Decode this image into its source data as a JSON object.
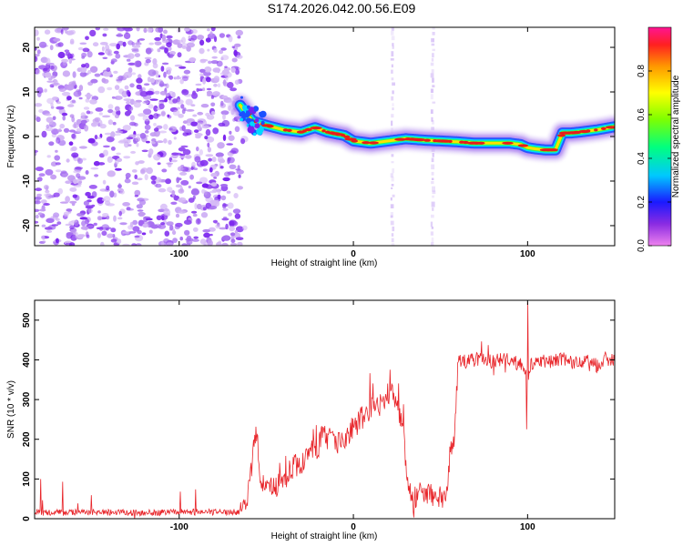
{
  "title": "S174.2026.042.00.56.E09",
  "colors": {
    "snr_line": "#e8252a",
    "ridge_core": "#e81c1c",
    "noise_hi": "#7a22ee",
    "noise_lo": "#d4b8f6",
    "axis": "#000000"
  },
  "chart_data": [
    {
      "type": "heatmap",
      "title": "S174.2026.042.00.56.E09",
      "xlabel": "Height of straight line (km)",
      "ylabel": "Frequency (Hz)",
      "xlim": [
        -183,
        150
      ],
      "ylim": [
        -24.5,
        24.5
      ],
      "xticks": [
        "-100",
        "0",
        "100"
      ],
      "yticks": [
        "20",
        "10",
        "0",
        "-10",
        "-20"
      ],
      "noise_region_x": [
        -183,
        -65
      ],
      "ridge": {
        "x": [
          -65,
          -58,
          -50,
          -40,
          -30,
          -22,
          -15,
          -5,
          0,
          10,
          20,
          30,
          40,
          50,
          60,
          70,
          80,
          90,
          96,
          100,
          105,
          110,
          116,
          120,
          125,
          130,
          140,
          150
        ],
        "freq": [
          7,
          3.5,
          2.5,
          1.5,
          1,
          2,
          1,
          0.2,
          -1,
          -1.5,
          -1,
          -0.5,
          -0.8,
          -1,
          -1.2,
          -1.5,
          -1.5,
          -1.5,
          -1.8,
          -2.5,
          -2.8,
          -3,
          -3,
          0.8,
          0.8,
          1,
          1.5,
          2.2
        ]
      },
      "interference_lines_x": [
        22,
        45
      ],
      "colorbar": {
        "label": "Normalized spectral amplitude",
        "range": [
          0.0,
          1.0
        ],
        "ticks": [
          "0.0",
          "0.2",
          "0.4",
          "0.6",
          "0.8"
        ]
      }
    },
    {
      "type": "line",
      "xlabel": "Height of straight line (km)",
      "ylabel": "SNR (10 * v/v)",
      "xlim": [
        -183,
        150
      ],
      "ylim": [
        0,
        550
      ],
      "xticks": [
        "-100",
        "0",
        "100"
      ],
      "yticks": [
        "0",
        "100",
        "200",
        "300",
        "400",
        "500"
      ],
      "series": [
        {
          "name": "SNR",
          "x": [
            -183,
            -150,
            -120,
            -90,
            -70,
            -64,
            -60,
            -56,
            -54,
            -50,
            -45,
            -40,
            -35,
            -30,
            -25,
            -20,
            -17,
            -15,
            -12,
            -10,
            -5,
            0,
            5,
            10,
            15,
            18,
            20,
            22,
            25,
            28,
            30,
            32,
            34,
            38,
            42,
            46,
            50,
            52,
            54,
            56,
            58,
            60,
            62,
            65,
            70,
            75,
            80,
            85,
            90,
            95,
            98,
            100,
            102,
            105,
            110,
            115,
            120,
            125,
            130,
            135,
            140,
            145,
            150
          ],
          "y": [
            15,
            16,
            15,
            17,
            16,
            18,
            70,
            230,
            120,
            75,
            80,
            90,
            130,
            140,
            170,
            180,
            230,
            190,
            210,
            185,
            200,
            230,
            255,
            265,
            285,
            300,
            320,
            310,
            290,
            240,
            150,
            70,
            40,
            72,
            68,
            60,
            55,
            50,
            100,
            185,
            200,
            390,
            400,
            395,
            400,
            405,
            395,
            400,
            400,
            390,
            380,
            340,
            390,
            400,
            398,
            395,
            405,
            392,
            398,
            400,
            385,
            405,
            395
          ]
        }
      ],
      "annotations": {
        "spike_up": {
          "x": 100,
          "y": 545
        },
        "spike_down": {
          "x": 99.5,
          "y": 225
        }
      }
    }
  ]
}
